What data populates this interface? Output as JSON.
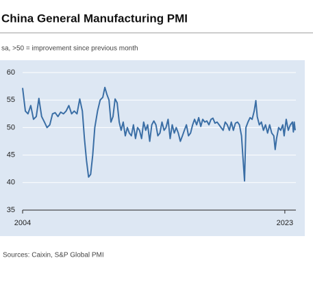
{
  "chart_data": {
    "type": "line",
    "title": "China General Manufacturing PMI",
    "subtitle": "sa, >50 = improvement since previous month",
    "source": "Sources: Caixin, S&P Global PMI",
    "x": [
      2004.0,
      2004.2,
      2004.39,
      2004.59,
      2004.79,
      2004.99,
      2005.18,
      2005.38,
      2005.58,
      2005.77,
      2005.97,
      2006.17,
      2006.36,
      2006.56,
      2006.76,
      2006.96,
      2007.15,
      2007.35,
      2007.55,
      2007.74,
      2007.94,
      2008.14,
      2008.33,
      2008.48,
      2008.63,
      2008.78,
      2008.93,
      2009.08,
      2009.23,
      2009.43,
      2009.62,
      2009.81,
      2009.96,
      2010.11,
      2010.26,
      2010.4,
      2010.55,
      2010.7,
      2010.85,
      2011.0,
      2011.14,
      2011.29,
      2011.44,
      2011.59,
      2011.73,
      2011.88,
      2012.03,
      2012.18,
      2012.33,
      2012.47,
      2012.62,
      2012.77,
      2012.92,
      2013.06,
      2013.21,
      2013.36,
      2013.51,
      2013.66,
      2013.8,
      2013.95,
      2014.1,
      2014.25,
      2014.39,
      2014.54,
      2014.69,
      2014.84,
      2014.99,
      2015.13,
      2015.28,
      2015.43,
      2015.58,
      2015.72,
      2015.87,
      2016.02,
      2016.17,
      2016.32,
      2016.46,
      2016.61,
      2016.76,
      2016.91,
      2017.05,
      2017.2,
      2017.35,
      2017.5,
      2017.65,
      2017.79,
      2017.94,
      2018.09,
      2018.24,
      2018.38,
      2018.53,
      2018.68,
      2018.83,
      2018.98,
      2019.12,
      2019.27,
      2019.42,
      2019.57,
      2019.71,
      2019.86,
      2020.08,
      2020.18,
      2020.33,
      2020.48,
      2020.63,
      2020.78,
      2020.9,
      2021.0,
      2021.15,
      2021.3,
      2021.45,
      2021.6,
      2021.75,
      2021.9,
      2022.05,
      2022.2,
      2022.3,
      2022.4,
      2022.55,
      2022.7,
      2022.85,
      2022.95,
      2023.1,
      2023.25,
      2023.4,
      2023.55,
      2023.62,
      2023.68,
      2023.75
    ],
    "series": [
      {
        "color": "#3a6ea5",
        "values": [
          57.2,
          53,
          52.5,
          54,
          51.5,
          52,
          55.3,
          52,
          51,
          50,
          50.5,
          52.5,
          52.7,
          52,
          52.8,
          52.5,
          53,
          54,
          52.5,
          53,
          52.5,
          55.2,
          53,
          48,
          44,
          41,
          41.5,
          45,
          50,
          53,
          55,
          55.5,
          57.3,
          56,
          55,
          51,
          52,
          55.2,
          54.5,
          51,
          49.5,
          51,
          48.5,
          50,
          49,
          48.5,
          50.5,
          48,
          50,
          49.5,
          48,
          51,
          49.5,
          50.5,
          47.5,
          50.5,
          51.2,
          50.5,
          48.5,
          49,
          51,
          49.5,
          50,
          51.5,
          48,
          50.5,
          49,
          50,
          49,
          47.5,
          48.5,
          49.5,
          50.5,
          48.5,
          49,
          50.5,
          51.5,
          50.5,
          51.8,
          50.2,
          51.5,
          51,
          51.2,
          50.5,
          51.5,
          51.7,
          50.8,
          51,
          50.5,
          50,
          49.5,
          51,
          50.5,
          49.5,
          51,
          49.5,
          50.8,
          51,
          50.5,
          48.5,
          40.3,
          50,
          51,
          51.8,
          51.5,
          53,
          54.9,
          52,
          50.5,
          51,
          49.5,
          50.5,
          49,
          50.5,
          49,
          48.5,
          46,
          48,
          50,
          49.5,
          50.5,
          48.5,
          51.5,
          49.5,
          50.5,
          51,
          49.2,
          51,
          49.5
        ]
      }
    ],
    "xlim": [
      2004,
      2023.8
    ],
    "xticks": [
      2004,
      2023
    ],
    "ylim": [
      35,
      60
    ],
    "yticks": [
      35,
      40,
      45,
      50,
      55,
      60
    ],
    "grid": true
  }
}
